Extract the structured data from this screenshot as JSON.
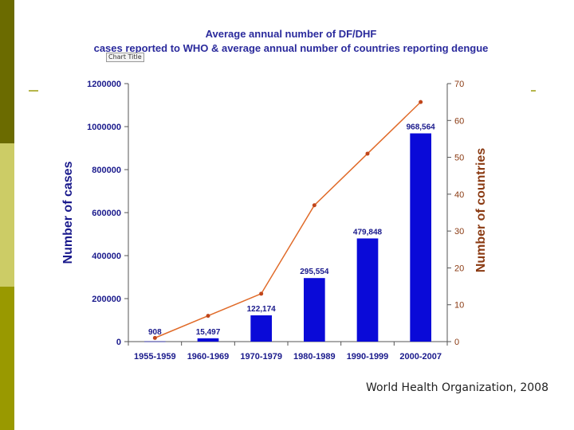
{
  "chart_data": {
    "type": "bar",
    "title_line1": "Average annual number of DF/DHF",
    "title_line2": "cases reported to WHO & average annual number of countries reporting dengue",
    "title_tag": "Chart Title",
    "categories": [
      "1955-1959",
      "1960-1969",
      "1970-1979",
      "1980-1989",
      "1990-1999",
      "2000-2007"
    ],
    "series": [
      {
        "name": "Number of cases",
        "type": "bar",
        "axis": "left",
        "values": [
          908,
          15497,
          122174,
          295554,
          479848,
          968564
        ],
        "labels": [
          "908",
          "15,497",
          "122,174",
          "295,554",
          "479,848",
          "968,564"
        ],
        "color": "#0a0ad8"
      },
      {
        "name": "Number of countries",
        "type": "line",
        "axis": "right",
        "values": [
          1,
          7,
          13,
          37,
          51,
          65
        ],
        "color": "#e06a28"
      }
    ],
    "ylabel": "Number of cases",
    "ylim": [
      0,
      1200000
    ],
    "yticks": [
      "0",
      "200000",
      "400000",
      "600000",
      "800000",
      "1000000",
      "1200000"
    ],
    "y2label": "Number of countries",
    "y2lim": [
      0,
      70
    ],
    "y2ticks": [
      "0",
      "10",
      "20",
      "30",
      "40",
      "50",
      "60",
      "70"
    ],
    "colors": {
      "left_axis": "#1a1a8c",
      "right_axis": "#8a3a12"
    }
  },
  "source": "World Health Organization, 2008"
}
